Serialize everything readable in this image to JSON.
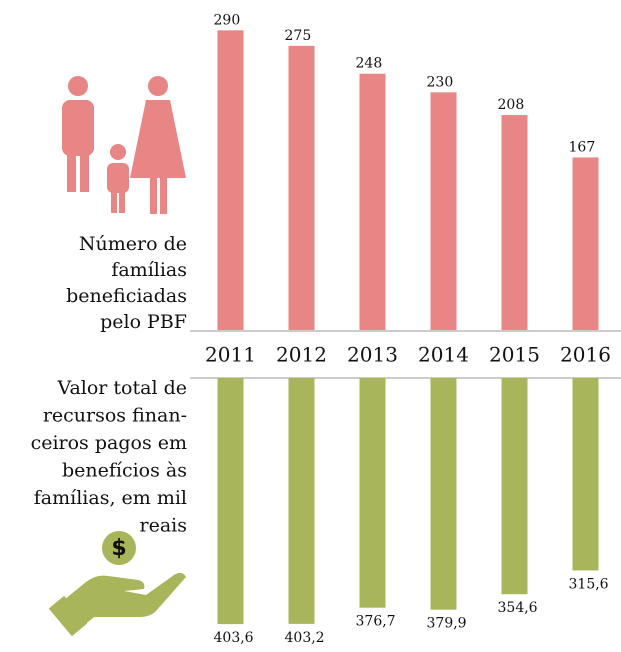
{
  "chart_data": [
    {
      "type": "bar",
      "label_lines": [
        "Número de",
        "famílias",
        "beneficiadas",
        "pelo PBF"
      ],
      "categories": [
        "2011",
        "2012",
        "2013",
        "2014",
        "2015",
        "2016"
      ],
      "values": [
        290,
        275,
        248,
        230,
        208,
        167
      ],
      "color": "#e88585",
      "ylim": [
        0,
        300
      ],
      "direction": "up"
    },
    {
      "type": "bar",
      "label_lines": [
        "Valor total de",
        "recursos finan-",
        "ceiros  pagos em",
        "benefícios às",
        "famílias, em mil",
        "reais"
      ],
      "values": [
        403.6,
        403.2,
        376.7,
        379.9,
        354.6,
        315.6
      ],
      "value_labels": [
        "403,6",
        "403,2",
        "376,7",
        "379,9",
        "354,6",
        "315,6"
      ],
      "color": "#a9b55a",
      "ylim": [
        0,
        410
      ],
      "direction": "down"
    }
  ]
}
